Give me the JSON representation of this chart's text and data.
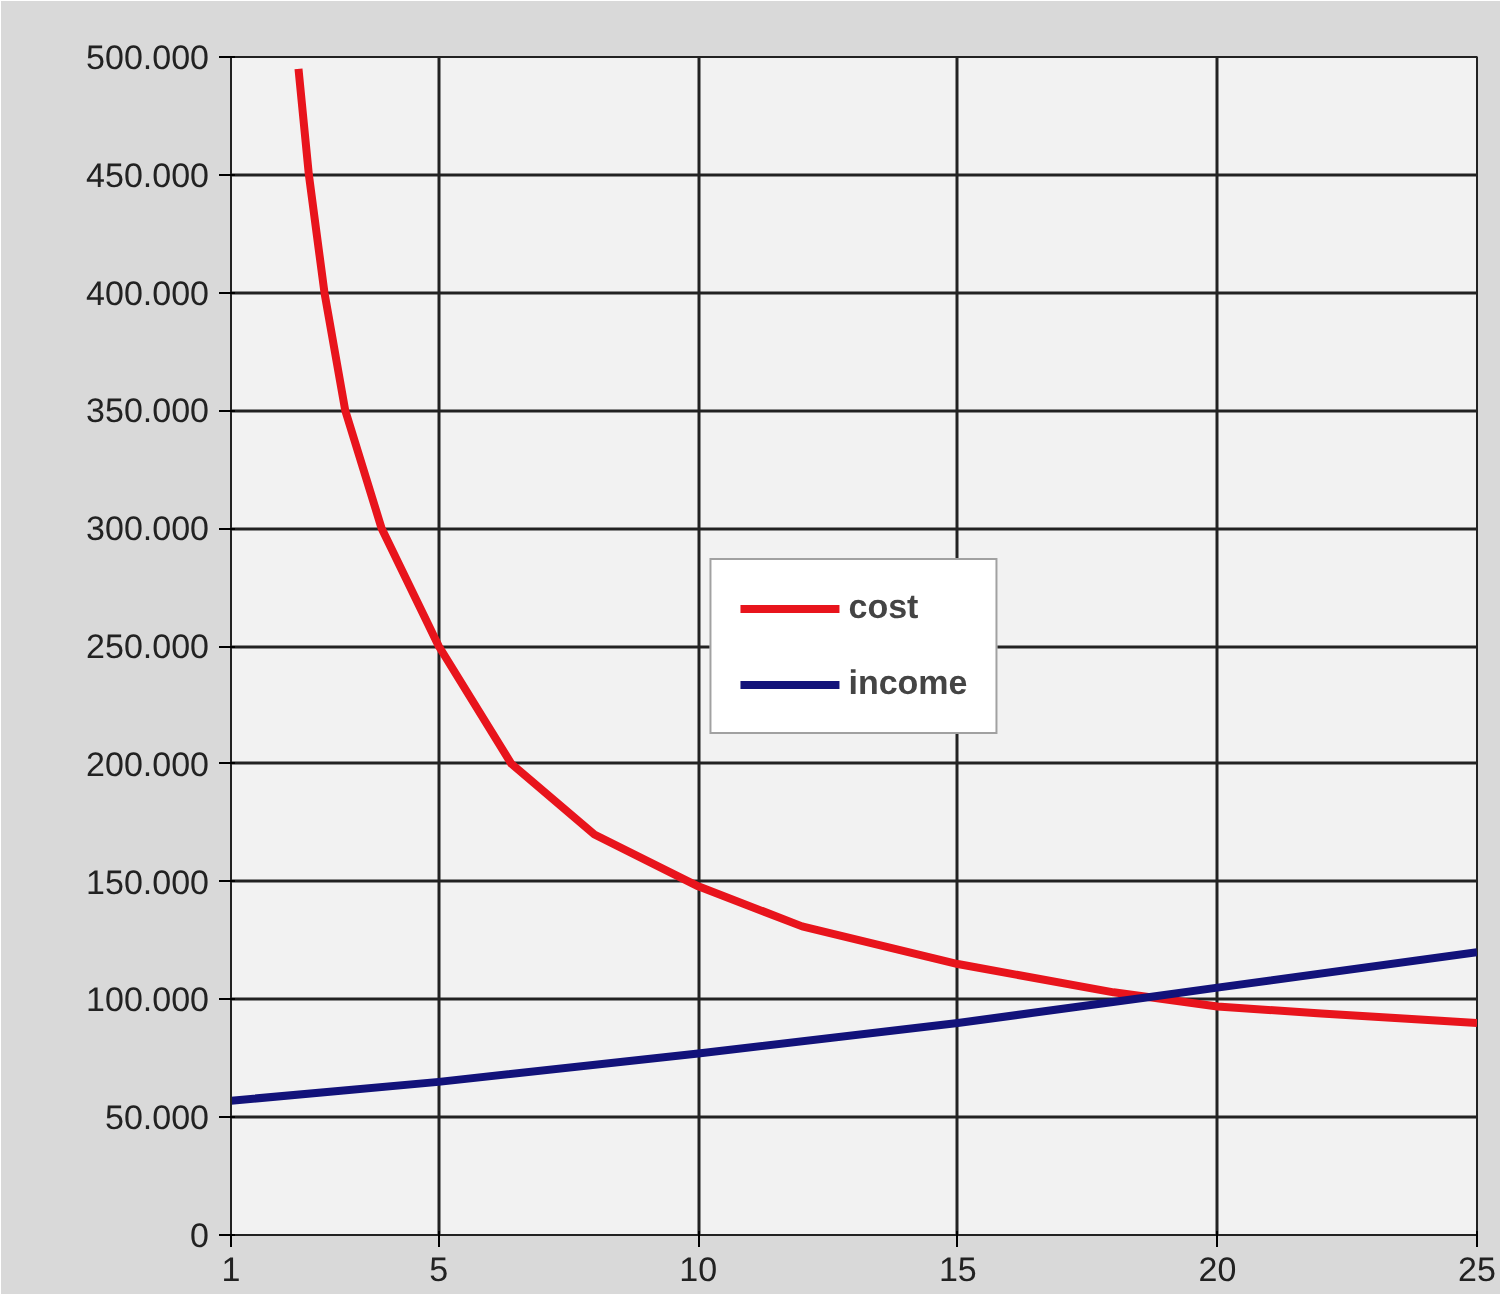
{
  "chart_data": {
    "type": "line",
    "xlim": [
      1,
      25
    ],
    "ylim": [
      0,
      500000
    ],
    "xticks": [
      1,
      5,
      10,
      15,
      20,
      25
    ],
    "yticks": [
      {
        "value": 0,
        "label": "0"
      },
      {
        "value": 50000,
        "label": "50.000"
      },
      {
        "value": 100000,
        "label": "100.000"
      },
      {
        "value": 150000,
        "label": "150.000"
      },
      {
        "value": 200000,
        "label": "200.000"
      },
      {
        "value": 250000,
        "label": "250.000"
      },
      {
        "value": 300000,
        "label": "300.000"
      },
      {
        "value": 350000,
        "label": "350.000"
      },
      {
        "value": 400000,
        "label": "400.000"
      },
      {
        "value": 450000,
        "label": "450.000"
      },
      {
        "value": 500000,
        "label": "500.000"
      }
    ],
    "grid": true,
    "legend": "center",
    "marker": "none",
    "line_style": "solid",
    "series": [
      {
        "name": "cost",
        "color": "#e8141c",
        "x": [
          2.3,
          2.5,
          2.8,
          3.2,
          3.9,
          5,
          6.4,
          8,
          10,
          12,
          15,
          18,
          20,
          22,
          25
        ],
        "values": [
          495000,
          450000,
          400000,
          350000,
          300000,
          250000,
          200000,
          170000,
          148000,
          131000,
          115000,
          103000,
          97000,
          94000,
          90000
        ]
      },
      {
        "name": "income",
        "color": "#12127a",
        "x": [
          1,
          5,
          10,
          15,
          18.7,
          20,
          25
        ],
        "values": [
          57000,
          65000,
          77000,
          90000,
          101000,
          105000,
          120000
        ]
      }
    ]
  }
}
